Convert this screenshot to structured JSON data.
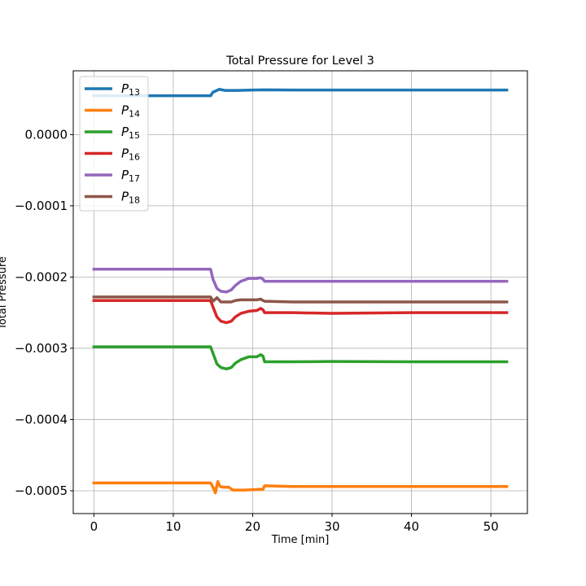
{
  "chart_data": {
    "type": "line",
    "title": "Total Pressure for Level 3",
    "xlabel": "Time [min]",
    "ylabel": "Total Pressure",
    "xlim": [
      -2.6,
      54.6
    ],
    "ylim": [
      -0.000532,
      8.95e-05
    ],
    "xticks": [
      0,
      10,
      20,
      30,
      40,
      50
    ],
    "xtick_labels": [
      "0",
      "10",
      "20",
      "30",
      "40",
      "50"
    ],
    "yticks": [
      0.0,
      -0.0001,
      -0.0002,
      -0.0003,
      -0.0004,
      -0.0005
    ],
    "ytick_labels": [
      "0.0000",
      "−0.0001",
      "−0.0002",
      "−0.0003",
      "−0.0004",
      "−0.0005"
    ],
    "grid": true,
    "legend_position": "upper-left",
    "series": [
      {
        "name": "P13",
        "label_base": "P",
        "label_sub": "13",
        "color": "#1f77b4",
        "x": [
          0,
          14.7,
          15.0,
          15.8,
          16.5,
          18,
          20,
          21.5,
          25,
          30,
          40,
          52
        ],
        "y": [
          5.45e-05,
          5.45e-05,
          5.95e-05,
          6.35e-05,
          6.2e-05,
          6.2e-05,
          6.25e-05,
          6.28e-05,
          6.25e-05,
          6.25e-05,
          6.25e-05,
          6.25e-05
        ]
      },
      {
        "name": "P14",
        "label_base": "P",
        "label_sub": "14",
        "color": "#ff7f0e",
        "x": [
          0,
          14.7,
          15.0,
          15.3,
          15.6,
          15.9,
          16.3,
          17,
          17.5,
          19,
          21,
          21.3,
          21.5,
          25,
          30,
          40,
          52
        ],
        "y": [
          -0.000489,
          -0.000489,
          -0.000495,
          -0.000503,
          -0.000487,
          -0.000494,
          -0.000495,
          -0.000495,
          -0.000499,
          -0.000499,
          -0.000498,
          -0.000498,
          -0.000493,
          -0.000494,
          -0.000494,
          -0.000494,
          -0.000494
        ]
      },
      {
        "name": "P15",
        "label_base": "P",
        "label_sub": "15",
        "color": "#2ca02c",
        "x": [
          0,
          14.7,
          15.0,
          15.5,
          16.0,
          16.7,
          17.3,
          17.8,
          18.5,
          19.5,
          20.5,
          21.0,
          21.3,
          21.5,
          25,
          30,
          40,
          52
        ],
        "y": [
          -0.000298,
          -0.000298,
          -0.000307,
          -0.000322,
          -0.000327,
          -0.000329,
          -0.000327,
          -0.000321,
          -0.000316,
          -0.000312,
          -0.000312,
          -0.000309,
          -0.000311,
          -0.000319,
          -0.000319,
          -0.0003185,
          -0.000319,
          -0.000319
        ]
      },
      {
        "name": "P16",
        "label_base": "P",
        "label_sub": "16",
        "color": "#d62728",
        "x": [
          0,
          14.7,
          15.0,
          15.5,
          16.0,
          16.7,
          17.3,
          17.8,
          18.5,
          19.5,
          20.5,
          21.0,
          21.3,
          21.5,
          25,
          30,
          40,
          52
        ],
        "y": [
          -0.000233,
          -0.000233,
          -0.000242,
          -0.000256,
          -0.000262,
          -0.000264,
          -0.000262,
          -0.000256,
          -0.000251,
          -0.000248,
          -0.000247,
          -0.000244,
          -0.000246,
          -0.00025,
          -0.00025,
          -0.000251,
          -0.00025,
          -0.00025
        ]
      },
      {
        "name": "P17",
        "label_base": "P",
        "label_sub": "17",
        "color": "#9467bd",
        "x": [
          0,
          14.7,
          15.0,
          15.5,
          16.0,
          16.7,
          17.3,
          17.8,
          18.5,
          19.5,
          20.5,
          21.0,
          21.3,
          21.5,
          25,
          30,
          40,
          52
        ],
        "y": [
          -0.000189,
          -0.000189,
          -0.000203,
          -0.000216,
          -0.00022,
          -0.000221,
          -0.000218,
          -0.000212,
          -0.000206,
          -0.000202,
          -0.000202,
          -0.000201,
          -0.000203,
          -0.000206,
          -0.000206,
          -0.000206,
          -0.000206,
          -0.000206
        ]
      },
      {
        "name": "P18",
        "label_base": "P",
        "label_sub": "18",
        "color": "#8c564b",
        "x": [
          0,
          14.7,
          15.0,
          15.5,
          16.0,
          16.7,
          17.3,
          17.8,
          18.5,
          19.5,
          20.5,
          21.0,
          21.3,
          21.5,
          25,
          30,
          40,
          52
        ],
        "y": [
          -0.000228,
          -0.000228,
          -0.000234,
          -0.000229,
          -0.000235,
          -0.000235,
          -0.000235,
          -0.000233,
          -0.000232,
          -0.000232,
          -0.000232,
          -0.000231,
          -0.000233,
          -0.000234,
          -0.000235,
          -0.000235,
          -0.000235,
          -0.000235
        ]
      }
    ]
  }
}
